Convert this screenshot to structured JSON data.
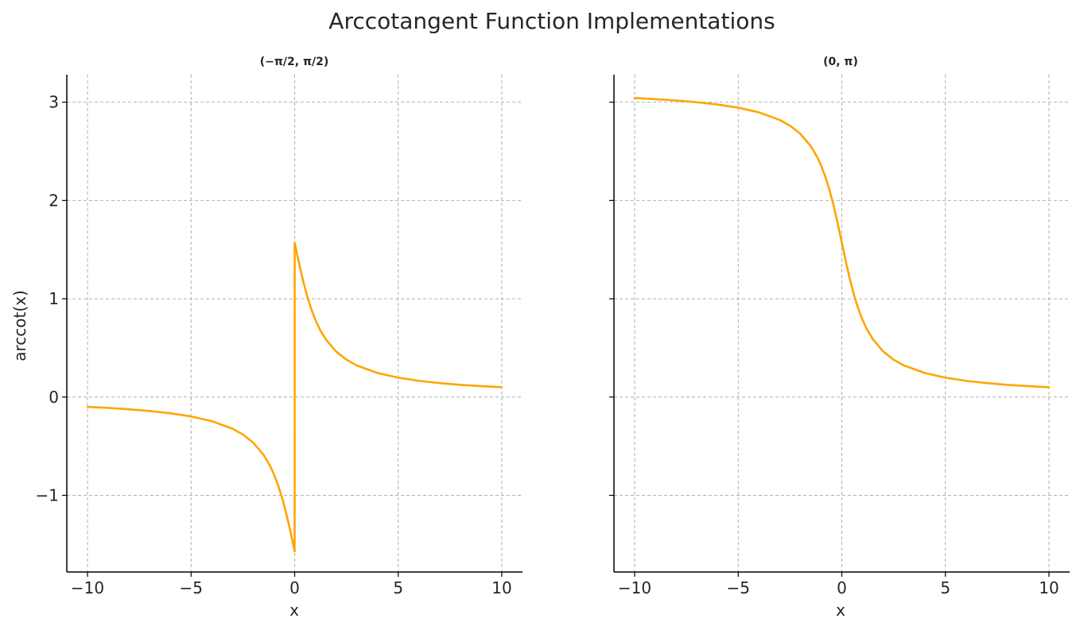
{
  "figure": {
    "title": "Arccotangent Function Implementations",
    "line_color": "#FFA500"
  },
  "chart_data": [
    {
      "type": "line",
      "title": "(−π/2, π/2)",
      "xlabel": "x",
      "ylabel": "arccot(x)",
      "xlim": [
        -11,
        11
      ],
      "ylim": [
        -1.78,
        3.28
      ],
      "xticks": [
        -10,
        -5,
        0,
        5,
        10
      ],
      "xtick_labels": [
        "−10",
        "−5",
        "0",
        "5",
        "10"
      ],
      "yticks": [
        -1,
        0,
        1,
        2,
        3
      ],
      "ytick_labels": [
        "−1",
        "0",
        "1",
        "2",
        "3"
      ],
      "show_ytick_labels": true,
      "grid": true,
      "series": [
        {
          "color": "#FFA500",
          "x": [
            -10,
            -9,
            -8,
            -7,
            -6,
            -5,
            -4,
            -3,
            -2.5,
            -2,
            -1.5,
            -1.2,
            -1,
            -0.8,
            -0.6,
            -0.5,
            -0.4,
            -0.3,
            -0.2,
            -0.1,
            -0.03,
            -0.001,
            0.001,
            0.03,
            0.1,
            0.2,
            0.3,
            0.4,
            0.5,
            0.6,
            0.8,
            1,
            1.2,
            1.5,
            2,
            2.5,
            3,
            4,
            5,
            6,
            7,
            8,
            9,
            10
          ],
          "y": [
            -0.0997,
            -0.1107,
            -0.1244,
            -0.1419,
            -0.1651,
            -0.1974,
            -0.245,
            -0.3218,
            -0.3805,
            -0.4636,
            -0.588,
            -0.6947,
            -0.7854,
            -0.8961,
            -1.0304,
            -1.1071,
            -1.1903,
            -1.2793,
            -1.3734,
            -1.4711,
            -1.5408,
            -1.5698,
            1.5698,
            1.5408,
            1.4711,
            1.3734,
            1.2793,
            1.1903,
            1.1071,
            1.0304,
            0.8961,
            0.7854,
            0.6947,
            0.588,
            0.4636,
            0.3805,
            0.3218,
            0.245,
            0.1974,
            0.1651,
            0.1419,
            0.1244,
            0.1107,
            0.0997
          ]
        }
      ]
    },
    {
      "type": "line",
      "title": "(0, π)",
      "xlabel": "x",
      "ylabel": "",
      "xlim": [
        -11,
        11
      ],
      "ylim": [
        -1.78,
        3.28
      ],
      "xticks": [
        -10,
        -5,
        0,
        5,
        10
      ],
      "xtick_labels": [
        "−10",
        "−5",
        "0",
        "5",
        "10"
      ],
      "yticks": [
        -1,
        0,
        1,
        2,
        3
      ],
      "ytick_labels": [],
      "show_ytick_labels": false,
      "grid": true,
      "series": [
        {
          "color": "#FFA500",
          "x": [
            -10,
            -9,
            -8,
            -7,
            -6,
            -5,
            -4,
            -3,
            -2.5,
            -2,
            -1.5,
            -1.2,
            -1,
            -0.8,
            -0.6,
            -0.4,
            -0.2,
            0,
            0.2,
            0.4,
            0.6,
            0.8,
            1,
            1.2,
            1.5,
            2,
            2.5,
            3,
            4,
            5,
            6,
            7,
            8,
            9,
            10
          ],
          "y": [
            3.0419,
            3.0309,
            3.0172,
            2.9997,
            2.9764,
            2.9442,
            2.8966,
            2.8198,
            2.7611,
            2.6779,
            2.5536,
            2.4469,
            2.3562,
            2.2455,
            2.1112,
            1.9513,
            1.7682,
            1.5708,
            1.3734,
            1.1903,
            1.0304,
            0.8961,
            0.7854,
            0.6947,
            0.588,
            0.4636,
            0.3805,
            0.3218,
            0.245,
            0.1974,
            0.1651,
            0.1419,
            0.1244,
            0.1107,
            0.0997
          ]
        }
      ]
    }
  ]
}
